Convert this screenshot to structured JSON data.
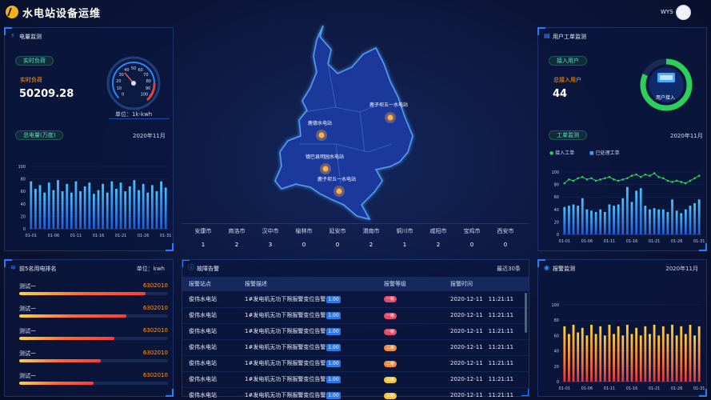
{
  "app": {
    "title": "水电站设备运维",
    "user": "WYS"
  },
  "power_monitor": {
    "title": "电量监测",
    "load_pill": "实时负荷",
    "load_label": "实时负荷",
    "load_value": "50209.28",
    "unit_label": "单位：1k-kwh",
    "gauge_ticks": [
      "0",
      "10",
      "20",
      "30",
      "40",
      "50",
      "60",
      "70",
      "80",
      "90",
      "100"
    ],
    "total_pill": "总电量(万度)",
    "total_month": "2020年11月"
  },
  "user_orders": {
    "title": "用户工单监测",
    "access_pill": "接入用户",
    "total_label": "总接入用户",
    "total_value": "44",
    "ring_label": "用户接入",
    "ring_fraction": 0.82,
    "order_pill": "工单监测",
    "order_month": "2020年11月",
    "legend_a": "接入工单",
    "legend_b": "已处理工单"
  },
  "map": {
    "stations": [
      "鹿子坝五一水电站",
      "鹿德水电站",
      "镇巴县明园水电站",
      "鹿子坝五一水电站"
    ]
  },
  "city_table": {
    "cities": [
      "安康市",
      "商洛市",
      "汉中市",
      "榆林市",
      "延安市",
      "渭南市",
      "铜川市",
      "咸阳市",
      "宝鸡市",
      "西安市"
    ],
    "counts": [
      "1",
      "2",
      "3",
      "0",
      "0",
      "2",
      "1",
      "2",
      "0",
      "0"
    ]
  },
  "ranking": {
    "title": "前5名用电排名",
    "unit": "单位：kwh",
    "items": [
      {
        "name": "测试一",
        "value": "6302010",
        "level": 0.85
      },
      {
        "name": "测试一",
        "value": "6302010",
        "level": 0.72
      },
      {
        "name": "测试一",
        "value": "6302010",
        "level": 0.64
      },
      {
        "name": "测试一",
        "value": "6302010",
        "level": 0.55
      },
      {
        "name": "测试一",
        "value": "6302010",
        "level": 0.5
      }
    ]
  },
  "fault_alarms": {
    "title": "故障告警",
    "recent": "最近30条",
    "headers": [
      "报警站点",
      "报警描述",
      "报警等级",
      "报警时间"
    ],
    "rows": [
      {
        "site": "俊伟水电站",
        "desc": "1#发电机无功下限报警变位告警",
        "tag": "1.00",
        "level": "一级",
        "color": "#e84a6a",
        "time": "2020-12-11　11:21:11"
      },
      {
        "site": "俊伟水电站",
        "desc": "1#发电机无功下限报警变位告警",
        "tag": "1.00",
        "level": "一级",
        "color": "#e84a6a",
        "time": "2020-12-11　11:21:11"
      },
      {
        "site": "俊伟水电站",
        "desc": "1#发电机无功下限报警变位告警",
        "tag": "1.00",
        "level": "一级",
        "color": "#e84a6a",
        "time": "2020-12-11　11:21:11"
      },
      {
        "site": "俊伟水电站",
        "desc": "1#发电机无功下限报警变位告警",
        "tag": "1.00",
        "level": "二级",
        "color": "#f08a3c",
        "time": "2020-12-11　11:21:11"
      },
      {
        "site": "俊伟水电站",
        "desc": "1#发电机无功下限报警变位告警",
        "tag": "1.00",
        "level": "二级",
        "color": "#f08a3c",
        "time": "2020-12-11　11:21:11"
      },
      {
        "site": "俊伟水电站",
        "desc": "1#发电机无功下限报警变位告警",
        "tag": "1.00",
        "level": "三级",
        "color": "#f2c531",
        "time": "2020-12-11　11:21:11"
      },
      {
        "site": "俊伟水电站",
        "desc": "1#发电机无功下限报警变位告警",
        "tag": "1.00",
        "level": "三级",
        "color": "#f2c531",
        "time": "2020-12-11　11:21:11"
      }
    ]
  },
  "alarm_monitor": {
    "title": "报警监测",
    "month": "2020年11月"
  },
  "chart_data": [
    {
      "type": "bar",
      "x_ticks": [
        "01-01",
        "01-06",
        "01-11",
        "01-16",
        "01-21",
        "01-26",
        "01-31"
      ],
      "y_ticks": [
        "0",
        "20",
        "40",
        "60",
        "80",
        "100"
      ],
      "ylim": [
        0,
        100
      ],
      "values": [
        76,
        64,
        70,
        58,
        74,
        62,
        78,
        60,
        72,
        58,
        76,
        60,
        68,
        74,
        56,
        62,
        72,
        58,
        76,
        64,
        74,
        60,
        68,
        78,
        62,
        72,
        58,
        70,
        60,
        76,
        66
      ]
    },
    {
      "type": "bar",
      "x_ticks": [
        "01-01",
        "01-06",
        "01-11",
        "01-16",
        "01-21",
        "01-26",
        "01-31"
      ],
      "y_ticks": [
        "0",
        "20",
        "40",
        "60",
        "80",
        "100"
      ],
      "ylim": [
        0,
        100
      ],
      "series": [
        {
          "name": "接入工单",
          "type": "line",
          "values": [
            82,
            88,
            86,
            90,
            92,
            88,
            90,
            86,
            88,
            90,
            92,
            88,
            86,
            88,
            90,
            94,
            96,
            92,
            96,
            94,
            98,
            92,
            90,
            86,
            84,
            86,
            84,
            82,
            86,
            90,
            94
          ]
        },
        {
          "name": "已处理工单",
          "type": "bar",
          "values": [
            44,
            46,
            48,
            46,
            58,
            40,
            38,
            36,
            40,
            36,
            48,
            46,
            48,
            58,
            76,
            52,
            70,
            74,
            46,
            40,
            42,
            40,
            40,
            36,
            56,
            38,
            34,
            40,
            46,
            50,
            56
          ]
        }
      ]
    },
    {
      "type": "bar",
      "x_ticks": [
        "01-01",
        "01-06",
        "01-11",
        "01-16",
        "01-21",
        "01-26",
        "01-31"
      ],
      "y_ticks": [
        "0",
        "20",
        "40",
        "60",
        "80",
        "100"
      ],
      "ylim": [
        0,
        100
      ],
      "values": [
        72,
        62,
        74,
        64,
        70,
        60,
        74,
        62,
        72,
        60,
        74,
        62,
        72,
        60,
        74,
        62,
        70,
        60,
        72,
        62,
        74,
        60,
        72,
        62,
        74,
        60,
        72,
        62,
        74,
        60,
        72
      ]
    }
  ]
}
